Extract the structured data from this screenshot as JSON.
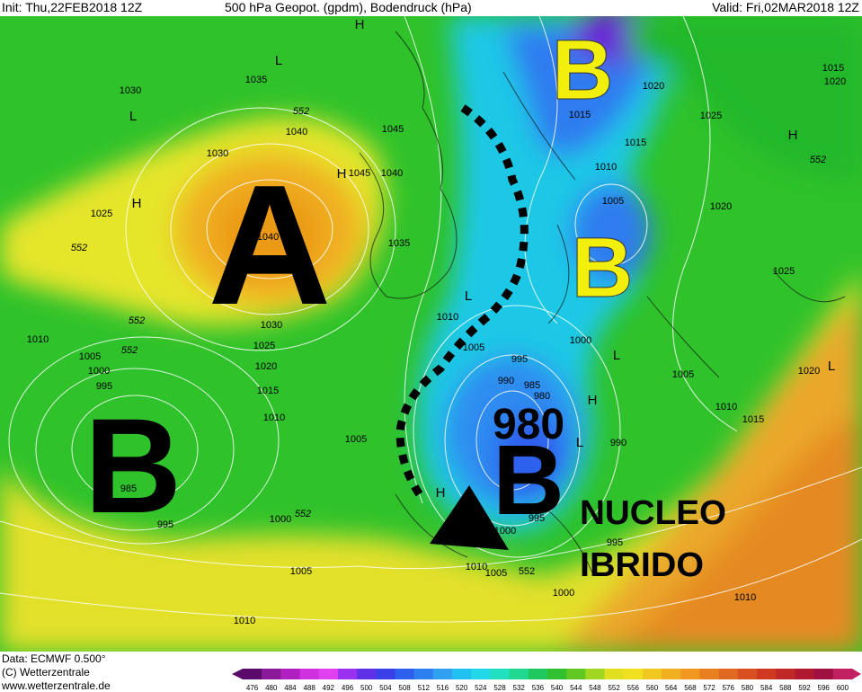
{
  "header": {
    "init": "Init: Thu,22FEB2018 12Z",
    "title": "500 hPa Geopot. (gpdm), Bodendruck (hPa)",
    "valid": "Valid: Fri,02MAR2018 12Z"
  },
  "annotations": {
    "high": "A",
    "low_atlantic": "B",
    "low_iberia": "B",
    "low_north": "B",
    "low_scandinavia": "B",
    "pressure": "980",
    "note_line1": "NUCLEO",
    "note_line2": "IBRIDO"
  },
  "isobar_labels": [
    1030,
    1035,
    1040,
    1045,
    1045,
    1040,
    1030,
    1025,
    1040,
    1035,
    1030,
    1025,
    1020,
    1015,
    1010,
    1010,
    1005,
    1000,
    995,
    985,
    995,
    1000,
    1005,
    1010,
    1010,
    1005,
    995,
    990,
    985,
    980,
    1005,
    1000,
    995,
    1010,
    1005,
    552,
    1000,
    995,
    990,
    1000,
    1005,
    1010,
    1015,
    1015,
    1020,
    1025,
    1020,
    1025,
    1005,
    1010,
    1015,
    1020,
    1010,
    1015,
    1020,
    552,
    552,
    552,
    552,
    552,
    552
  ],
  "centers": [
    "H",
    "L",
    "L",
    "H",
    "H",
    "H",
    "L",
    "H",
    "L",
    "L",
    "L",
    "H"
  ],
  "footer": {
    "data": "Data: ECMWF  0.500°",
    "copyright": "(C) Wetterzentrale",
    "url": "www.wetterzentrale.de"
  },
  "colorbar": [
    476,
    480,
    484,
    488,
    492,
    496,
    500,
    504,
    508,
    512,
    516,
    520,
    524,
    528,
    532,
    536,
    540,
    544,
    548,
    552,
    556,
    560,
    564,
    568,
    572,
    576,
    580,
    584,
    588,
    592,
    596,
    600
  ]
}
